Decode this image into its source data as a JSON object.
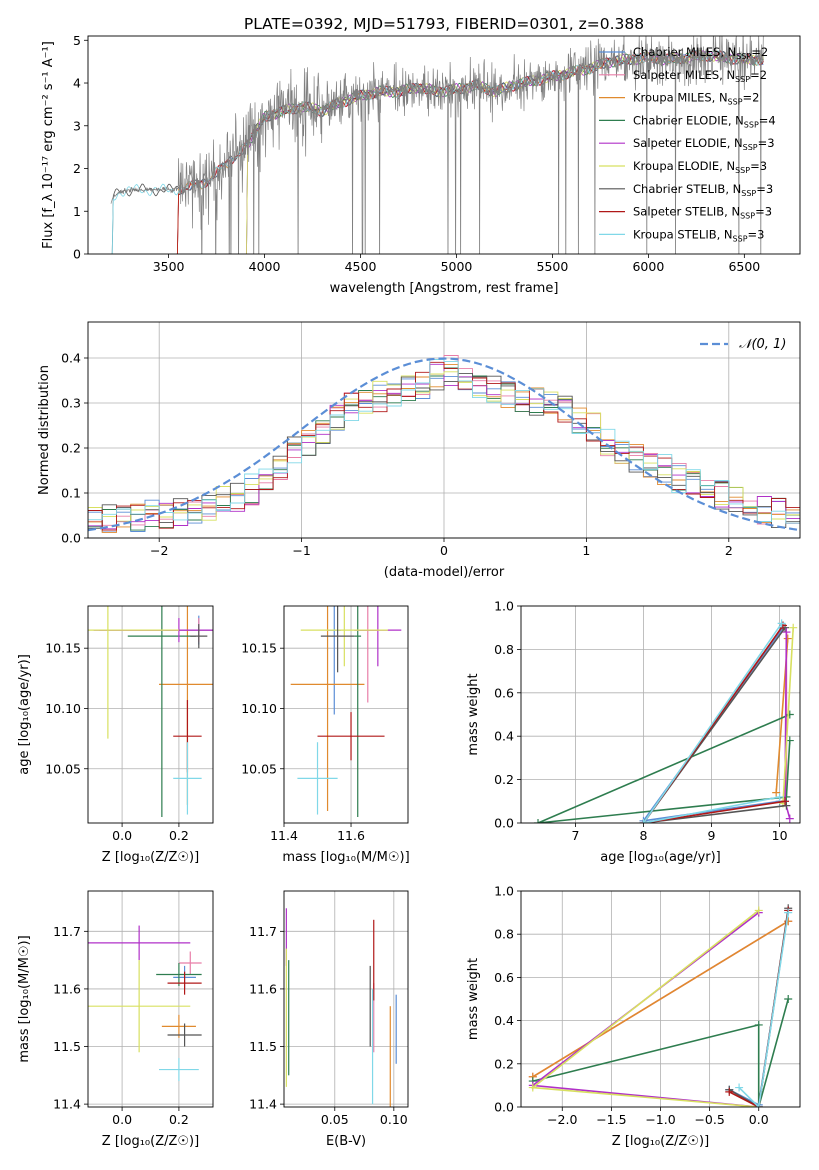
{
  "figure_title": "PLATE=0392, MJD=51793, FIBERID=0301, z=0.388",
  "colors": {
    "chabrier_miles": "#5b8ed6",
    "salpeter_miles": "#e87ea8",
    "kroupa_miles": "#e08a2e",
    "chabrier_elodie": "#2e7d4f",
    "salpeter_elodie": "#b030c8",
    "kroupa_elodie": "#d8e060",
    "chabrier_stelib": "#555555",
    "salpeter_stelib": "#b01818",
    "kroupa_stelib": "#80d8e8",
    "data": "#808080",
    "gauss": "#5b8ed6"
  },
  "chart_data": [
    {
      "id": "spectrum",
      "type": "line",
      "xlabel": "wavelength [Angstrom, rest frame]",
      "ylabel": "Flux [f_λ 10⁻¹⁷ erg cm⁻² s⁻¹ A⁻¹]",
      "xlim": [
        3080,
        6790
      ],
      "ylim": [
        0,
        5.1
      ],
      "xticks": [
        3500,
        4000,
        4500,
        5000,
        5500,
        6000,
        6500
      ],
      "yticks": [
        0,
        1,
        2,
        3,
        4,
        5
      ],
      "continuum": [
        [
          3200,
          1.25
        ],
        [
          3240,
          1.45
        ],
        [
          3300,
          1.5
        ],
        [
          3400,
          1.5
        ],
        [
          3500,
          1.5
        ],
        [
          3600,
          1.55
        ],
        [
          3700,
          1.7
        ],
        [
          3800,
          2.1
        ],
        [
          3900,
          2.5
        ],
        [
          4000,
          3.2
        ],
        [
          4100,
          3.35
        ],
        [
          4200,
          3.45
        ],
        [
          4300,
          3.35
        ],
        [
          4400,
          3.55
        ],
        [
          4500,
          3.7
        ],
        [
          4600,
          3.8
        ],
        [
          4700,
          3.8
        ],
        [
          4800,
          3.9
        ],
        [
          4900,
          3.8
        ],
        [
          5000,
          3.85
        ],
        [
          5100,
          3.95
        ],
        [
          5200,
          3.8
        ],
        [
          5300,
          3.95
        ],
        [
          5400,
          4.05
        ],
        [
          5500,
          4.15
        ],
        [
          5600,
          4.25
        ],
        [
          5700,
          4.35
        ],
        [
          5800,
          4.5
        ],
        [
          5900,
          4.55
        ],
        [
          6000,
          4.6
        ],
        [
          6100,
          4.55
        ],
        [
          6200,
          4.6
        ],
        [
          6300,
          4.65
        ],
        [
          6400,
          4.6
        ],
        [
          6500,
          4.55
        ],
        [
          6600,
          4.55
        ]
      ],
      "legend": [
        {
          "label": "Chabrier MILES, N",
          "sub": "SSP",
          "suffix": "=2",
          "color_key": "chabrier_miles"
        },
        {
          "label": "Salpeter MILES, N",
          "sub": "SSP",
          "suffix": "=2",
          "color_key": "salpeter_miles"
        },
        {
          "label": "Kroupa MILES, N",
          "sub": "SSP",
          "suffix": "=2",
          "color_key": "kroupa_miles"
        },
        {
          "label": "Chabrier ELODIE, N",
          "sub": "SSP",
          "suffix": "=4",
          "color_key": "chabrier_elodie"
        },
        {
          "label": "Salpeter ELODIE, N",
          "sub": "SSP",
          "suffix": "=3",
          "color_key": "salpeter_elodie"
        },
        {
          "label": "Kroupa ELODIE, N",
          "sub": "SSP",
          "suffix": "=3",
          "color_key": "kroupa_elodie"
        },
        {
          "label": "Chabrier STELIB, N",
          "sub": "SSP",
          "suffix": "=3",
          "color_key": "chabrier_stelib"
        },
        {
          "label": "Salpeter STELIB, N",
          "sub": "SSP",
          "suffix": "=3",
          "color_key": "salpeter_stelib"
        },
        {
          "label": "Kroupa STELIB, N",
          "sub": "SSP",
          "suffix": "=3",
          "color_key": "kroupa_stelib"
        }
      ]
    },
    {
      "id": "residuals",
      "type": "histogram",
      "xlabel": "(data-model)/error",
      "ylabel": "Normed distribution",
      "xlim": [
        -2.5,
        2.5
      ],
      "ylim": [
        0,
        0.48
      ],
      "xticks": [
        -2,
        -1,
        0,
        1,
        2
      ],
      "yticks": [
        0.0,
        0.1,
        0.2,
        0.3,
        0.4
      ],
      "grid": true,
      "legend_position": "top-right",
      "legend_label": "𝒩(0, 1)",
      "bins": [
        -2.5,
        2.5,
        50
      ],
      "envelope": [
        0.035,
        0.036,
        0.04,
        0.045,
        0.05,
        0.05,
        0.055,
        0.06,
        0.065,
        0.08,
        0.09,
        0.105,
        0.13,
        0.155,
        0.19,
        0.215,
        0.24,
        0.27,
        0.29,
        0.3,
        0.31,
        0.32,
        0.33,
        0.34,
        0.36,
        0.37,
        0.36,
        0.34,
        0.33,
        0.31,
        0.3,
        0.3,
        0.29,
        0.28,
        0.26,
        0.24,
        0.21,
        0.19,
        0.175,
        0.16,
        0.15,
        0.13,
        0.12,
        0.1,
        0.09,
        0.075,
        0.065,
        0.055,
        0.05,
        0.045
      ]
    },
    {
      "id": "age_vs_Z",
      "type": "scatter",
      "xlabel": "Z [log₁₀(Z/Z☉)]",
      "ylabel": "age  [log₁₀(age/yr)]",
      "xlim": [
        -0.12,
        0.32
      ],
      "ylim": [
        10.005,
        10.185
      ],
      "xticks": [
        0.0,
        0.2
      ],
      "yticks": [
        10.05,
        10.1,
        10.15
      ],
      "grid": true,
      "points": [
        {
          "x": 0.27,
          "y": 10.165,
          "xerr": 0.12,
          "yerr": 0.012,
          "color_key": "chabrier_miles"
        },
        {
          "x": 0.27,
          "y": 10.165,
          "xerr": 0.35,
          "yerr": 0.01,
          "color_key": "salpeter_miles"
        },
        {
          "x": 0.23,
          "y": 10.12,
          "xerr": 0.1,
          "yerr": 0.1,
          "color_key": "kroupa_miles"
        },
        {
          "x": 0.14,
          "y": 10.16,
          "xerr": 0.12,
          "yerr": 0.15,
          "color_key": "chabrier_elodie"
        },
        {
          "x": 0.2,
          "y": 10.165,
          "xerr": 0.3,
          "yerr": 0.01,
          "color_key": "salpeter_elodie"
        },
        {
          "x": -0.05,
          "y": 10.165,
          "xerr": 0.25,
          "yerr": 0.09,
          "color_key": "kroupa_elodie"
        },
        {
          "x": 0.27,
          "y": 10.16,
          "xerr": 0.03,
          "yerr": 0.01,
          "color_key": "chabrier_stelib"
        },
        {
          "x": 0.23,
          "y": 10.077,
          "xerr": 0.05,
          "yerr": 0.03,
          "color_key": "salpeter_stelib"
        },
        {
          "x": 0.23,
          "y": 10.042,
          "xerr": 0.05,
          "yerr": 0.03,
          "color_key": "kroupa_stelib"
        }
      ]
    },
    {
      "id": "age_vs_mass",
      "type": "scatter",
      "xlabel": "mass [log₁₀(M/M☉)]",
      "ylabel": "",
      "xlim": [
        11.4,
        11.77
      ],
      "ylim": [
        10.005,
        10.185
      ],
      "xticks": [
        11.4,
        11.6
      ],
      "yticks": [
        10.05,
        10.1,
        10.15
      ],
      "grid": true,
      "points": [
        {
          "x": 11.55,
          "y": 10.165,
          "xerr": 0.02,
          "yerr": 0.07,
          "color_key": "chabrier_miles"
        },
        {
          "x": 11.65,
          "y": 10.165,
          "xerr": 0.03,
          "yerr": 0.06,
          "color_key": "salpeter_miles"
        },
        {
          "x": 11.53,
          "y": 10.12,
          "xerr": 0.11,
          "yerr": 0.105,
          "color_key": "kroupa_miles"
        },
        {
          "x": 11.62,
          "y": 10.16,
          "xerr": 0.01,
          "yerr": 0.15,
          "color_key": "chabrier_elodie"
        },
        {
          "x": 11.68,
          "y": 10.165,
          "xerr": 0.07,
          "yerr": 0.03,
          "color_key": "salpeter_elodie"
        },
        {
          "x": 11.58,
          "y": 10.165,
          "xerr": 0.13,
          "yerr": 0.03,
          "color_key": "kroupa_elodie"
        },
        {
          "x": 11.56,
          "y": 10.16,
          "xerr": 0.05,
          "yerr": 0.03,
          "color_key": "chabrier_stelib"
        },
        {
          "x": 11.6,
          "y": 10.077,
          "xerr": 0.1,
          "yerr": 0.02,
          "color_key": "salpeter_stelib"
        },
        {
          "x": 11.5,
          "y": 10.042,
          "xerr": 0.06,
          "yerr": 0.03,
          "color_key": "kroupa_stelib"
        }
      ]
    },
    {
      "id": "weight_vs_age",
      "type": "line",
      "xlabel": "age  [log₁₀(age/yr)]",
      "ylabel": "mass weight",
      "xlim": [
        6.2,
        10.3
      ],
      "ylim": [
        0,
        1
      ],
      "xticks": [
        7,
        8,
        9,
        10
      ],
      "yticks": [
        0.0,
        0.2,
        0.4,
        0.6,
        0.8,
        1.0
      ],
      "grid": true,
      "series": [
        {
          "color_key": "chabrier_miles",
          "points": [
            [
              10.05,
              0.9
            ],
            [
              8.0,
              0.01
            ],
            [
              10.0,
              0.1
            ]
          ]
        },
        {
          "color_key": "salpeter_miles",
          "points": [
            [
              10.1,
              0.88
            ],
            [
              10.1,
              0.12
            ]
          ]
        },
        {
          "color_key": "kroupa_miles",
          "points": [
            [
              10.12,
              0.85
            ],
            [
              9.95,
              0.14
            ]
          ]
        },
        {
          "color_key": "chabrier_elodie",
          "points": [
            [
              10.15,
              0.5
            ],
            [
              6.45,
              0.0
            ],
            [
              10.1,
              0.12
            ],
            [
              10.15,
              0.38
            ]
          ]
        },
        {
          "color_key": "salpeter_elodie",
          "points": [
            [
              10.1,
              0.88
            ],
            [
              10.08,
              0.1
            ],
            [
              10.15,
              0.02
            ]
          ]
        },
        {
          "color_key": "kroupa_elodie",
          "points": [
            [
              10.2,
              0.9
            ],
            [
              10.05,
              0.09
            ]
          ]
        },
        {
          "color_key": "chabrier_stelib",
          "points": [
            [
              10.08,
              0.9
            ],
            [
              8.0,
              0.0
            ],
            [
              10.1,
              0.08
            ]
          ]
        },
        {
          "color_key": "salpeter_stelib",
          "points": [
            [
              10.05,
              0.91
            ],
            [
              8.0,
              0.0
            ],
            [
              10.08,
              0.1
            ]
          ]
        },
        {
          "color_key": "kroupa_stelib",
          "points": [
            [
              10.03,
              0.92
            ],
            [
              8.0,
              0.0
            ],
            [
              10.0,
              0.12
            ]
          ]
        }
      ]
    },
    {
      "id": "mass_vs_Z",
      "type": "scatter",
      "xlabel": "Z [log₁₀(Z/Z☉)]",
      "ylabel": "mass [log₁₀(M/M☉)]",
      "xlim": [
        -0.12,
        0.32
      ],
      "ylim": [
        11.395,
        11.77
      ],
      "xticks": [
        0.0,
        0.2
      ],
      "yticks": [
        11.4,
        11.5,
        11.6,
        11.7
      ],
      "grid": true,
      "points": [
        {
          "x": 0.22,
          "y": 11.62,
          "xerr": 0.04,
          "yerr": 0.02,
          "color_key": "chabrier_miles"
        },
        {
          "x": 0.24,
          "y": 11.645,
          "xerr": 0.04,
          "yerr": 0.02,
          "color_key": "salpeter_miles"
        },
        {
          "x": 0.2,
          "y": 11.535,
          "xerr": 0.06,
          "yerr": 0.02,
          "color_key": "kroupa_miles"
        },
        {
          "x": 0.2,
          "y": 11.625,
          "xerr": 0.08,
          "yerr": 0.02,
          "color_key": "chabrier_elodie"
        },
        {
          "x": 0.06,
          "y": 11.68,
          "xerr": 0.18,
          "yerr": 0.03,
          "color_key": "salpeter_elodie"
        },
        {
          "x": 0.06,
          "y": 11.57,
          "xerr": 0.18,
          "yerr": 0.08,
          "color_key": "kroupa_elodie"
        },
        {
          "x": 0.22,
          "y": 11.52,
          "xerr": 0.06,
          "yerr": 0.02,
          "color_key": "chabrier_stelib"
        },
        {
          "x": 0.22,
          "y": 11.61,
          "xerr": 0.06,
          "yerr": 0.02,
          "color_key": "salpeter_stelib"
        },
        {
          "x": 0.2,
          "y": 11.46,
          "xerr": 0.07,
          "yerr": 0.02,
          "color_key": "kroupa_stelib"
        }
      ]
    },
    {
      "id": "mass_vs_ebv",
      "type": "scatter",
      "xlabel": "E(B-V)",
      "ylabel": "",
      "xlim": [
        0.007,
        0.112
      ],
      "ylim": [
        11.395,
        11.77
      ],
      "xticks": [
        0.05,
        0.1
      ],
      "yticks": [
        11.4,
        11.5,
        11.6,
        11.7
      ],
      "grid": true,
      "points": [
        {
          "x": 0.102,
          "y": 11.53,
          "xerr": 0.0,
          "yerr": 0.06,
          "color_key": "chabrier_miles"
        },
        {
          "x": 0.083,
          "y": 11.55,
          "xerr": 0.0,
          "yerr": 0.06,
          "color_key": "salpeter_miles"
        },
        {
          "x": 0.097,
          "y": 11.48,
          "xerr": 0.0,
          "yerr": 0.09,
          "color_key": "kroupa_miles"
        },
        {
          "x": 0.011,
          "y": 11.55,
          "xerr": 0.0,
          "yerr": 0.1,
          "color_key": "chabrier_elodie"
        },
        {
          "x": 0.009,
          "y": 11.69,
          "xerr": 0.0,
          "yerr": 0.05,
          "color_key": "salpeter_elodie"
        },
        {
          "x": 0.009,
          "y": 11.55,
          "xerr": 0.0,
          "yerr": 0.12,
          "color_key": "kroupa_elodie"
        },
        {
          "x": 0.08,
          "y": 11.57,
          "xerr": 0.0,
          "yerr": 0.07,
          "color_key": "chabrier_stelib"
        },
        {
          "x": 0.083,
          "y": 11.65,
          "xerr": 0.0,
          "yerr": 0.07,
          "color_key": "salpeter_stelib"
        },
        {
          "x": 0.082,
          "y": 11.5,
          "xerr": 0.0,
          "yerr": 0.1,
          "color_key": "kroupa_stelib"
        }
      ]
    },
    {
      "id": "weight_vs_Z",
      "type": "line",
      "xlabel": "Z [log₁₀(Z/Z☉)]",
      "ylabel": "mass weight",
      "xlim": [
        -2.42,
        0.42
      ],
      "ylim": [
        0,
        1
      ],
      "xticks": [
        -2.0,
        -1.5,
        -1.0,
        -0.5,
        0.0
      ],
      "yticks": [
        0.0,
        0.2,
        0.4,
        0.6,
        0.8,
        1.0
      ],
      "grid": true,
      "series": [
        {
          "color_key": "chabrier_miles",
          "points": [
            [
              0.3,
              0.91
            ],
            [
              0.0,
              0.01
            ],
            [
              -0.3,
              0.08
            ]
          ]
        },
        {
          "color_key": "salpeter_miles",
          "points": [
            [
              0.3,
              0.86
            ],
            [
              -2.3,
              0.14
            ]
          ]
        },
        {
          "color_key": "kroupa_miles",
          "points": [
            [
              0.3,
              0.86
            ],
            [
              -2.3,
              0.14
            ]
          ]
        },
        {
          "color_key": "chabrier_elodie",
          "points": [
            [
              0.3,
              0.5
            ],
            [
              0.0,
              0.0
            ],
            [
              0.0,
              0.38
            ],
            [
              -2.3,
              0.12
            ]
          ]
        },
        {
          "color_key": "salpeter_elodie",
          "points": [
            [
              0.0,
              0.9
            ],
            [
              -2.3,
              0.1
            ],
            [
              0.0,
              0.0
            ]
          ]
        },
        {
          "color_key": "kroupa_elodie",
          "points": [
            [
              0.0,
              0.91
            ],
            [
              -2.3,
              0.09
            ],
            [
              0.0,
              0.0
            ]
          ]
        },
        {
          "color_key": "chabrier_stelib",
          "points": [
            [
              0.3,
              0.92
            ],
            [
              0.0,
              0.0
            ],
            [
              -0.3,
              0.08
            ]
          ]
        },
        {
          "color_key": "salpeter_stelib",
          "points": [
            [
              0.3,
              0.91
            ],
            [
              0.0,
              0.0
            ],
            [
              -0.3,
              0.07
            ]
          ]
        },
        {
          "color_key": "kroupa_stelib",
          "points": [
            [
              0.3,
              0.9
            ],
            [
              0.0,
              0.0
            ],
            [
              -0.2,
              0.09
            ]
          ]
        }
      ]
    }
  ]
}
